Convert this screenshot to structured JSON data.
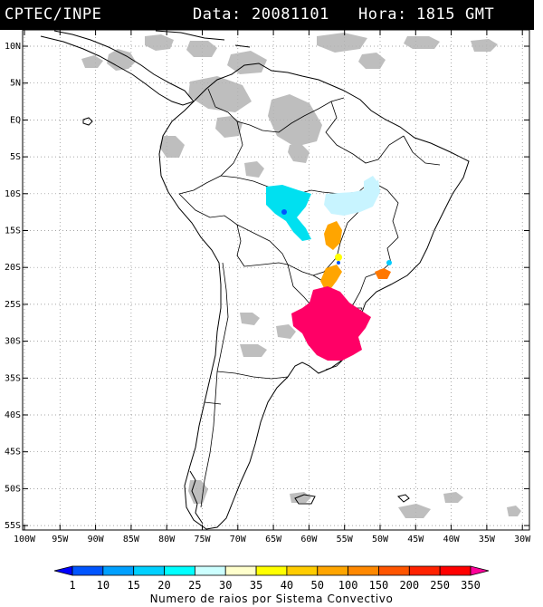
{
  "header": {
    "source": "CPTEC/INPE",
    "date_label": "Data:",
    "date_value": "20081101",
    "hour_label": "Hora:",
    "hour_value": "1815",
    "timezone": "GMT"
  },
  "axes": {
    "lat_labels": [
      "10N",
      "5N",
      "EQ",
      "5S",
      "10S",
      "15S",
      "20S",
      "25S",
      "30S",
      "35S",
      "40S",
      "45S",
      "50S",
      "55S"
    ],
    "lon_labels": [
      "100W",
      "95W",
      "90W",
      "85W",
      "80W",
      "75W",
      "70W",
      "65W",
      "60W",
      "55W",
      "50W",
      "45W",
      "40W",
      "35W",
      "30W"
    ]
  },
  "colorbar": {
    "labels": [
      "1",
      "10",
      "15",
      "20",
      "25",
      "30",
      "35",
      "40",
      "50",
      "100",
      "150",
      "200",
      "250",
      "350"
    ],
    "colors": [
      "#0000ff",
      "#0055ff",
      "#00a0ff",
      "#00d0ff",
      "#00ffff",
      "#ccffff",
      "#ffffcc",
      "#ffff00",
      "#ffcc00",
      "#ffa500",
      "#ff8800",
      "#ff5500",
      "#ff2200",
      "#ff0000",
      "#ff0099"
    ],
    "caption": "Numero de raios por Sistema Convectivo"
  },
  "colors": {
    "cloud": "#b0b0b0",
    "cyan_system": "#00e0f0",
    "light_cyan_system": "#c8f4ff",
    "orange_system": "#ff9900",
    "magenta_system": "#ff0066"
  }
}
